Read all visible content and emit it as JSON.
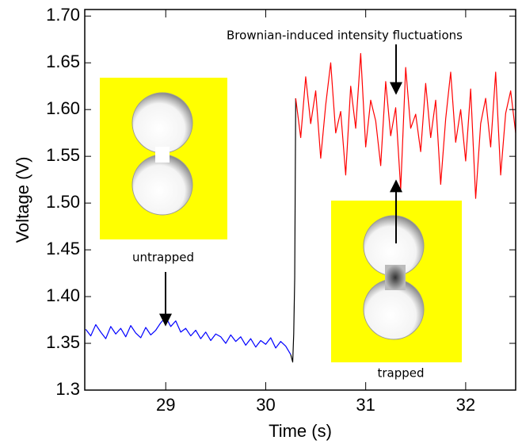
{
  "chart_data": {
    "type": "line",
    "xlabel": "Time (s)",
    "ylabel": "Voltage (V)",
    "xlim": [
      28.19,
      32.5
    ],
    "xticks": [
      29,
      30,
      31,
      32
    ],
    "ylim": [
      1.3,
      1.707
    ],
    "yticks": [
      1.3,
      1.35,
      {
        "value": 1.4,
        "label": "1.40"
      },
      1.45,
      {
        "value": 1.5,
        "label": "1.50"
      },
      1.55,
      {
        "value": 1.6,
        "label": "1.60"
      },
      1.65,
      {
        "value": 1.7,
        "label": "1.70"
      }
    ],
    "annotations": [
      "Brownian-induced intensity fluctuations",
      "untrapped",
      "trapped"
    ],
    "series": [
      {
        "color": "#0000ff",
        "x": [
          28.2,
          28.25,
          28.3,
          28.35,
          28.4,
          28.45,
          28.5,
          28.55,
          28.6,
          28.65,
          28.7,
          28.75,
          28.8,
          28.85,
          28.9,
          28.95,
          29.0,
          29.05,
          29.1,
          29.15,
          29.2,
          29.25,
          29.3,
          29.35,
          29.4,
          29.45,
          29.5,
          29.55,
          29.6,
          29.65,
          29.7,
          29.75,
          29.8,
          29.85,
          29.9,
          29.95,
          30.0,
          30.05,
          30.1,
          30.15,
          30.2,
          30.25
        ],
        "values": [
          1.365,
          1.358,
          1.37,
          1.362,
          1.355,
          1.368,
          1.36,
          1.366,
          1.357,
          1.369,
          1.361,
          1.356,
          1.367,
          1.359,
          1.364,
          1.372,
          1.378,
          1.368,
          1.374,
          1.362,
          1.366,
          1.358,
          1.364,
          1.355,
          1.362,
          1.353,
          1.36,
          1.357,
          1.35,
          1.359,
          1.352,
          1.357,
          1.348,
          1.355,
          1.346,
          1.353,
          1.349,
          1.356,
          1.345,
          1.352,
          1.347,
          1.338
        ]
      },
      {
        "color": "#000000",
        "x": [
          30.25,
          30.27,
          30.28,
          30.29,
          30.3
        ],
        "values": [
          1.338,
          1.33,
          1.36,
          1.42,
          1.612
        ]
      },
      {
        "color": "#ff0000",
        "x": [
          30.3,
          30.35,
          30.4,
          30.45,
          30.5,
          30.55,
          30.6,
          30.65,
          30.7,
          30.75,
          30.8,
          30.85,
          30.9,
          30.95,
          31.0,
          31.05,
          31.1,
          31.15,
          31.2,
          31.25,
          31.3,
          31.35,
          31.4,
          31.45,
          31.5,
          31.55,
          31.6,
          31.65,
          31.7,
          31.75,
          31.8,
          31.85,
          31.9,
          31.95,
          32.0,
          32.05,
          32.1,
          32.15,
          32.2,
          32.25,
          32.3,
          32.35,
          32.4,
          32.45,
          32.5
        ],
        "values": [
          1.612,
          1.57,
          1.635,
          1.585,
          1.62,
          1.548,
          1.605,
          1.65,
          1.575,
          1.598,
          1.53,
          1.625,
          1.58,
          1.66,
          1.56,
          1.61,
          1.588,
          1.54,
          1.63,
          1.572,
          1.602,
          1.515,
          1.645,
          1.58,
          1.595,
          1.555,
          1.628,
          1.57,
          1.61,
          1.52,
          1.59,
          1.64,
          1.565,
          1.6,
          1.545,
          1.622,
          1.505,
          1.585,
          1.612,
          1.56,
          1.64,
          1.53,
          1.596,
          1.62,
          1.575
        ]
      }
    ]
  }
}
